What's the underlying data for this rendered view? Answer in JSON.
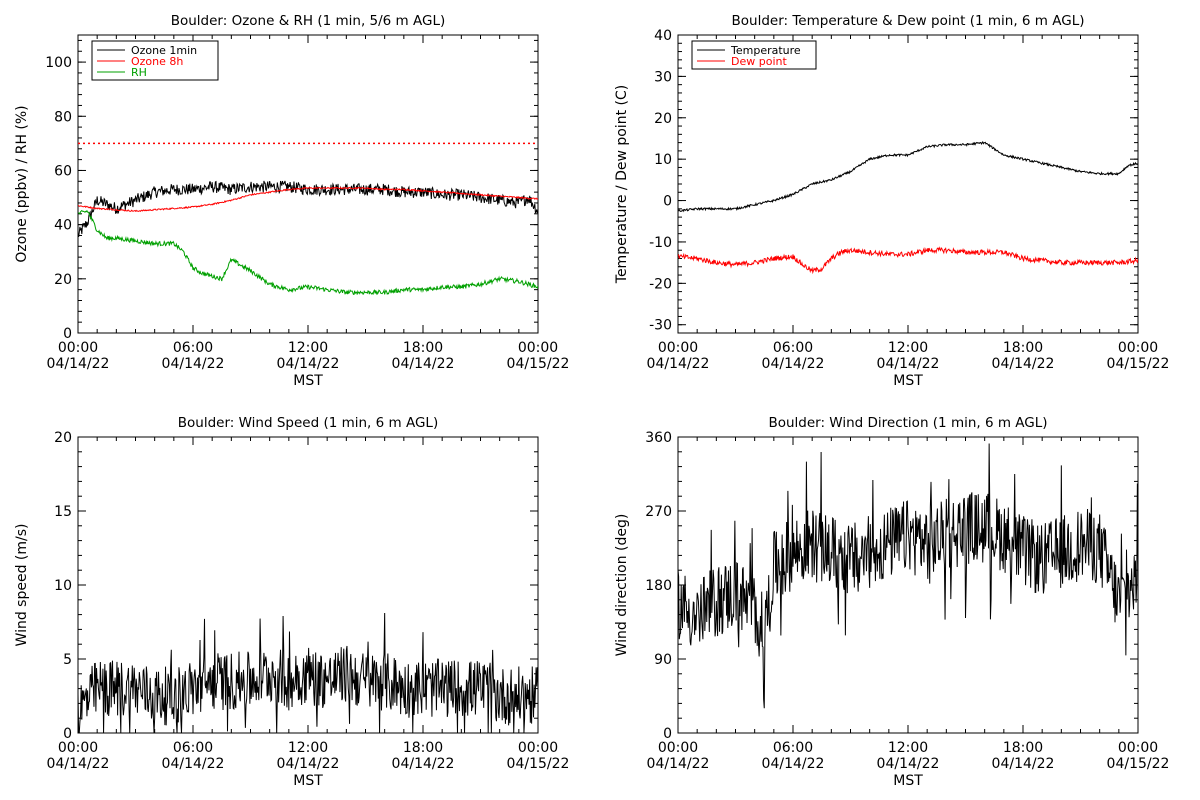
{
  "x_tick_times": [
    "00:00",
    "06:00",
    "12:00",
    "18:00",
    "00:00"
  ],
  "x_tick_dates": [
    "04/14/22",
    "04/14/22",
    "04/14/22",
    "04/14/22",
    "04/15/22"
  ],
  "xlabel": "MST",
  "chart_data": [
    {
      "type": "line",
      "title": "Boulder: Ozone & RH (1 min, 5/6 m AGL)",
      "xlabel": "MST",
      "ylabel": "Ozone (ppbv) / RH (%)",
      "xlim": [
        0,
        24
      ],
      "ylim": [
        0,
        110
      ],
      "yticks": [
        0,
        20,
        40,
        60,
        80,
        100
      ],
      "legend": "top-left",
      "reference_line": {
        "y": 70,
        "color": "#ff0000",
        "style": "dotted"
      },
      "series": [
        {
          "name": "Ozone 1min",
          "color": "#000000",
          "noise": 2.2,
          "x": [
            0,
            0.5,
            1,
            2,
            3,
            4,
            5,
            6,
            7,
            8,
            9,
            10,
            11,
            12,
            13,
            14,
            15,
            16,
            17,
            18,
            19,
            20,
            21,
            22,
            23,
            23.5,
            24
          ],
          "y": [
            36,
            41,
            49,
            46,
            49,
            52,
            53,
            53,
            54,
            53,
            54,
            54,
            54,
            53,
            53,
            53,
            53,
            53,
            52,
            52,
            51,
            51,
            50,
            49,
            48,
            50,
            45
          ]
        },
        {
          "name": "Ozone 8h",
          "color": "#ff0000",
          "noise": 0.25,
          "x": [
            0,
            1,
            2,
            3,
            4,
            5,
            6,
            7,
            8,
            9,
            10,
            11,
            12,
            13,
            14,
            15,
            16,
            17,
            18,
            19,
            20,
            21,
            22,
            23,
            24
          ],
          "y": [
            47,
            46,
            45.5,
            45,
            45.5,
            46,
            46.5,
            47.5,
            49,
            51,
            52,
            53,
            53.5,
            53.5,
            53.5,
            53.5,
            53,
            53,
            52.5,
            52,
            51.5,
            51,
            50.5,
            50,
            49.5
          ]
        },
        {
          "name": "RH",
          "color": "#00a000",
          "noise": 0.8,
          "x": [
            0,
            0.5,
            1,
            1.5,
            2,
            3,
            4,
            5,
            5.5,
            6,
            6.5,
            7,
            7.5,
            8,
            8.5,
            9,
            10,
            11,
            12,
            13,
            14,
            15,
            16,
            17,
            18,
            19,
            20,
            21,
            22,
            23,
            24
          ],
          "y": [
            44,
            45,
            38,
            35,
            35,
            34,
            33,
            33,
            30,
            24,
            22,
            21,
            20,
            27,
            25,
            23,
            18,
            16,
            17,
            16,
            15,
            15,
            15,
            16,
            16,
            17,
            17,
            18,
            20,
            19,
            17
          ]
        }
      ]
    },
    {
      "type": "line",
      "title": "Boulder: Temperature & Dew point (1 min, 6 m AGL)",
      "xlabel": "MST",
      "ylabel": "Temperature / Dew point (C)",
      "xlim": [
        0,
        24
      ],
      "ylim": [
        -32,
        40
      ],
      "yticks": [
        -30,
        -20,
        -10,
        0,
        10,
        20,
        30,
        40
      ],
      "legend": "top-left",
      "series": [
        {
          "name": "Temperature",
          "color": "#000000",
          "noise": 0.25,
          "x": [
            0,
            1,
            2,
            3,
            4,
            5,
            6,
            7,
            8,
            9,
            10,
            11,
            12,
            12.5,
            13,
            14,
            15,
            16,
            17,
            18,
            19,
            20,
            21,
            22,
            23,
            23.5,
            24
          ],
          "y": [
            -2.5,
            -2,
            -2,
            -2,
            -1,
            0,
            1.5,
            4,
            5,
            7,
            10,
            11,
            11,
            12,
            13,
            13.5,
            13.5,
            14,
            11,
            10,
            9,
            8,
            7,
            6.5,
            6.5,
            8.5,
            9
          ]
        },
        {
          "name": "Dew point",
          "color": "#ff0000",
          "noise": 0.6,
          "x": [
            0,
            1,
            2,
            3,
            4,
            5,
            6,
            6.5,
            7,
            7.5,
            8,
            8.5,
            9,
            10,
            11,
            12,
            13,
            14,
            15,
            16,
            17,
            18,
            19,
            20,
            21,
            22,
            23,
            24
          ],
          "y": [
            -13.5,
            -14,
            -15,
            -15.5,
            -15,
            -14,
            -13.5,
            -15.5,
            -17,
            -16.5,
            -14,
            -12.5,
            -12,
            -12.5,
            -13,
            -13,
            -12,
            -12,
            -12.5,
            -12.5,
            -12.5,
            -14,
            -14.5,
            -15,
            -15,
            -15,
            -15,
            -14.5
          ]
        }
      ]
    },
    {
      "type": "line",
      "title": "Boulder: Wind Speed (1 min, 6 m AGL)",
      "xlabel": "MST",
      "ylabel": "Wind speed (m/s)",
      "xlim": [
        0,
        24
      ],
      "ylim": [
        0,
        20
      ],
      "yticks": [
        0,
        5,
        10,
        15,
        20
      ],
      "series": [
        {
          "color": "#000000",
          "noise": 2.0,
          "spiky": true,
          "min": 0,
          "x": [
            0,
            1,
            2,
            3,
            4,
            5,
            6,
            7,
            8,
            9,
            10,
            11,
            12,
            13,
            14,
            15,
            16,
            17,
            18,
            19,
            20,
            21,
            22,
            23,
            24
          ],
          "y": [
            1.5,
            3,
            3,
            3,
            2.5,
            2.5,
            3,
            3.5,
            3.5,
            3.5,
            4,
            3.5,
            4,
            3.5,
            4,
            3.5,
            3.5,
            3,
            3,
            3,
            3,
            3,
            2.5,
            2.5,
            2.5
          ]
        }
      ]
    },
    {
      "type": "line",
      "title": "Boulder: Wind Direction (1 min, 6 m AGL)",
      "xlabel": "MST",
      "ylabel": "Wind direction (deg)",
      "xlim": [
        0,
        24
      ],
      "ylim": [
        0,
        360
      ],
      "yticks": [
        0,
        90,
        180,
        270,
        360
      ],
      "series": [
        {
          "color": "#000000",
          "noise": 45,
          "spiky": true,
          "min": 0,
          "max": 360,
          "x": [
            0,
            1,
            2,
            3,
            4,
            4.5,
            5,
            6,
            7,
            8,
            9,
            10,
            11,
            12,
            13,
            14,
            15,
            16,
            17,
            18,
            19,
            20,
            21,
            22,
            23,
            24
          ],
          "y": [
            160,
            140,
            160,
            170,
            150,
            120,
            200,
            220,
            230,
            220,
            210,
            220,
            230,
            240,
            230,
            240,
            250,
            250,
            240,
            220,
            210,
            220,
            230,
            225,
            160,
            190
          ]
        }
      ]
    }
  ]
}
